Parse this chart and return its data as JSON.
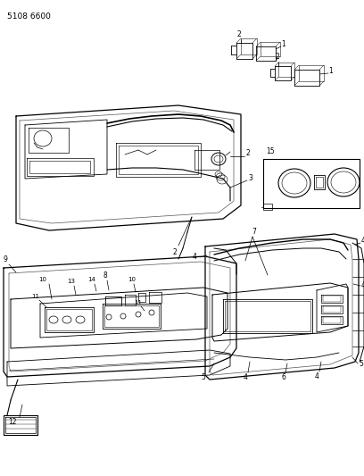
{
  "part_number": "5108 6600",
  "background_color": "#ffffff",
  "figsize": [
    4.08,
    5.33
  ],
  "dpi": 100,
  "gray": "#888888",
  "dark": "#333333",
  "black": "#000000"
}
